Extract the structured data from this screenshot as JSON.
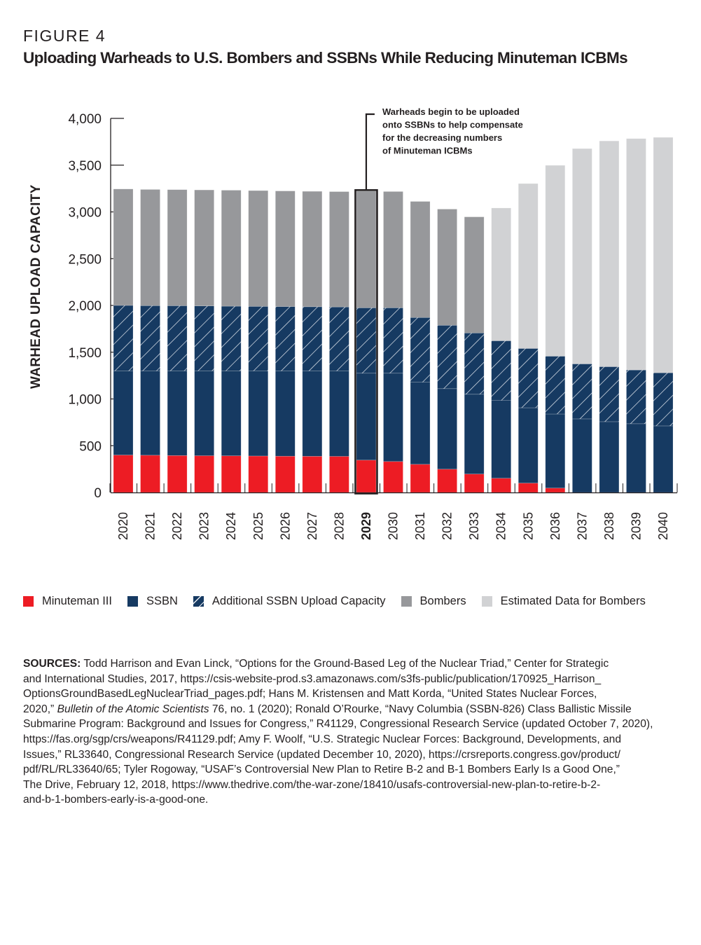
{
  "figure_label": "FIGURE 4",
  "title": "Uploading Warheads to U.S. Bombers and SSBNs While Reducing Minuteman ICBMs",
  "colors": {
    "minuteman": "#ed1c24",
    "ssbn": "#163a62",
    "additional_ssbn": "#163a62",
    "bombers": "#97989b",
    "estimated_bombers": "#d1d2d4",
    "highlight": "#231f20"
  },
  "chart_data": {
    "type": "bar",
    "stacked": true,
    "title": "Uploading Warheads to U.S. Bombers and SSBNs While Reducing Minuteman ICBMs",
    "xlabel": "",
    "ylabel": "WARHEAD UPLOAD CAPACITY",
    "ylim": [
      0,
      4000
    ],
    "yticks": [
      0,
      500,
      1000,
      1500,
      2000,
      2500,
      3000,
      3500,
      4000
    ],
    "ytick_labels": [
      "0",
      "500",
      "1,000",
      "1,500",
      "2,000",
      "2,500",
      "3,000",
      "3,500",
      "4,000"
    ],
    "grid": false,
    "legend_position": "bottom",
    "categories": [
      "2020",
      "2021",
      "2022",
      "2023",
      "2024",
      "2025",
      "2026",
      "2027",
      "2028",
      "2029",
      "2030",
      "2031",
      "2032",
      "2033",
      "2034",
      "2035",
      "2036",
      "2037",
      "2038",
      "2039",
      "2040"
    ],
    "highlight_category": "2029",
    "series": [
      {
        "name": "Minuteman III",
        "key": "minuteman",
        "values": [
          400,
          398,
          395,
          393,
          392,
          390,
          388,
          387,
          386,
          346,
          331,
          301,
          249,
          197,
          152,
          100,
          47,
          0,
          0,
          0,
          0
        ]
      },
      {
        "name": "SSBN",
        "key": "ssbn",
        "values": [
          900,
          902,
          905,
          907,
          908,
          910,
          912,
          913,
          914,
          929,
          944,
          879,
          861,
          853,
          833,
          806,
          792,
          787,
          757,
          735,
          712
        ]
      },
      {
        "name": "Additional SSBN Upload Capacity",
        "key": "additional_ssbn",
        "pattern": "hatch",
        "values": [
          700,
          698,
          697,
          695,
          692,
          690,
          688,
          686,
          684,
          700,
          700,
          691,
          678,
          656,
          637,
          634,
          618,
          588,
          588,
          575,
          568
        ]
      },
      {
        "name": "Bombers",
        "key": "bombers",
        "values": [
          1245,
          1242,
          1241,
          1240,
          1240,
          1238,
          1236,
          1234,
          1233,
          1247,
          1243,
          1241,
          1242,
          1241,
          0,
          0,
          0,
          0,
          0,
          0,
          0
        ]
      },
      {
        "name": "Estimated Data for Bombers",
        "key": "estimated_bombers",
        "values": [
          0,
          0,
          0,
          0,
          0,
          0,
          0,
          0,
          0,
          0,
          0,
          0,
          0,
          0,
          1420,
          1763,
          2041,
          2302,
          2414,
          2474,
          2517
        ]
      }
    ],
    "annotation": {
      "category": "2029",
      "lines": [
        "Warheads begin to be uploaded",
        "onto SSBNs to help compensate",
        "for the decreasing numbers",
        "of Minuteman ICBMs"
      ]
    }
  },
  "legend": [
    {
      "label": "Minuteman III",
      "key": "minuteman"
    },
    {
      "label": "SSBN",
      "key": "ssbn"
    },
    {
      "label": "Additional SSBN Upload Capacity",
      "key": "additional_ssbn"
    },
    {
      "label": "Bombers",
      "key": "bombers"
    },
    {
      "label": "Estimated Data for Bombers",
      "key": "estimated_bombers"
    }
  ],
  "sources": {
    "label": "SOURCES:",
    "lines": [
      " Todd Harrison and Evan Linck, “Options for the Ground-Based Leg of the Nuclear Triad,” Center for Strategic",
      "and International Studies, 2017, https://csis-website-prod.s3.amazonaws.com/s3fs-public/publication/170925_Harrison_",
      "OptionsGroundBasedLegNuclearTriad_pages.pdf; Hans M. Kristensen and Matt Korda, “United States Nuclear Forces,",
      "ITALIC_LINE",
      "Submarine Program: Background and Issues for Congress,” R41129, Congressional Research Service (updated October 7, 2020),",
      "https://fas.org/sgp/crs/weapons/R41129.pdf; Amy F. Woolf, “U.S. Strategic Nuclear Forces: Background, Developments, and",
      "Issues,” RL33640, Congressional Research Service (updated December 10, 2020), https://crsreports.congress.gov/product/",
      "pdf/RL/RL33640/65; Tyler Rogoway, “USAF’s Controversial New Plan to Retire B-2 and B-1 Bombers Early Is a Good One,”",
      "The Drive, February 12, 2018, https://www.thedrive.com/the-war-zone/18410/usafs-controversial-new-plan-to-retire-b-2-",
      "and-b-1-bombers-early-is-a-good-one."
    ],
    "line4_pre": "2020,” ",
    "line4_italic": "Bulletin of the Atomic Scientists",
    "line4_post": " 76, no. 1 (2020); Ronald O’Rourke, “Navy Columbia (SSBN-826) Class Ballistic Missile"
  }
}
